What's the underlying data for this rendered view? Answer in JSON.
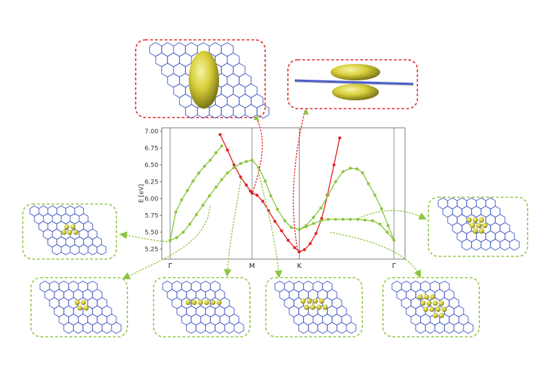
{
  "chart_data": {
    "type": "line",
    "ylabel": "E [eV]",
    "x_ticks": [
      "Γ",
      "M",
      "K",
      "Γ"
    ],
    "y_ticks": [
      "5.25",
      "5.50",
      "5.75",
      "6.00",
      "6.25",
      "6.50",
      "6.75",
      "7.00"
    ],
    "ylim": [
      5.1,
      7.05
    ],
    "x_special_points": [
      0,
      1,
      1.577,
      2.732
    ],
    "grid": false,
    "series": [
      {
        "color": "#e32121",
        "x": [
          0.61,
          0.7,
          0.78,
          0.86,
          0.93,
          0.98,
          1.0,
          1.06,
          1.13,
          1.2,
          1.28,
          1.36,
          1.44,
          1.52,
          1.577,
          1.64,
          1.71,
          1.78,
          1.85,
          1.92,
          2.0,
          2.07
        ],
        "y": [
          6.95,
          6.72,
          6.5,
          6.32,
          6.2,
          6.11,
          6.08,
          6.05,
          5.96,
          5.82,
          5.66,
          5.52,
          5.38,
          5.27,
          5.21,
          5.24,
          5.33,
          5.48,
          5.7,
          6.05,
          6.5,
          6.9
        ]
      },
      {
        "color": "#8cc63f",
        "x": [
          0,
          0.08,
          0.16,
          0.24,
          0.32,
          0.4,
          0.48,
          0.56,
          0.63,
          0.7,
          0.78,
          0.86,
          0.93,
          1.0,
          1.08,
          1.16,
          1.23,
          1.31,
          1.4,
          1.48,
          1.577,
          1.66,
          1.75,
          1.84,
          1.93,
          2.02,
          2.11,
          2.2,
          2.29,
          2.38,
          2.47,
          2.56,
          2.65,
          2.732
        ],
        "y": [
          5.38,
          5.42,
          5.5,
          5.62,
          5.76,
          5.9,
          6.04,
          6.17,
          6.28,
          6.38,
          6.46,
          6.52,
          6.55,
          6.57,
          6.46,
          6.26,
          6.04,
          5.84,
          5.67,
          5.57,
          5.54,
          5.58,
          5.63,
          5.67,
          5.69,
          5.69,
          5.69,
          5.69,
          5.69,
          5.68,
          5.67,
          5.62,
          5.5,
          5.38
        ]
      },
      {
        "color": "#8cc63f",
        "x": [
          0,
          0.07,
          0.14,
          0.21,
          0.28,
          0.35,
          0.42,
          0.49,
          0.56,
          0.63
        ],
        "y": [
          5.38,
          5.8,
          5.98,
          6.12,
          6.26,
          6.38,
          6.48,
          6.57,
          6.68,
          6.78
        ]
      },
      {
        "color": "#8cc63f",
        "x": [
          1.577,
          1.66,
          1.75,
          1.84,
          1.93,
          2.02,
          2.11,
          2.2,
          2.28,
          2.35,
          2.42,
          2.5,
          2.58,
          2.66,
          2.732
        ],
        "y": [
          5.54,
          5.6,
          5.72,
          5.86,
          6.05,
          6.25,
          6.4,
          6.45,
          6.44,
          6.38,
          6.22,
          6.05,
          5.85,
          5.6,
          5.38
        ]
      }
    ]
  },
  "insets": [
    {
      "name": "inset-top-left-ellipsoid",
      "style": "red",
      "kind": "ellipsoid"
    },
    {
      "name": "inset-top-right-side-view",
      "style": "red",
      "kind": "side"
    },
    {
      "name": "inset-left",
      "style": "green",
      "kind": "lattice-small"
    },
    {
      "name": "inset-right",
      "style": "green",
      "kind": "lattice-triangle"
    },
    {
      "name": "inset-bottom-1",
      "style": "green",
      "kind": "lattice-small"
    },
    {
      "name": "inset-bottom-2",
      "style": "green",
      "kind": "lattice-row"
    },
    {
      "name": "inset-bottom-3",
      "style": "green",
      "kind": "lattice-row2"
    },
    {
      "name": "inset-bottom-4",
      "style": "green",
      "kind": "lattice-big"
    }
  ],
  "colors": {
    "red_curve": "#e32121",
    "green_curve": "#8cc63f",
    "red_frame": "#e32121",
    "green_frame": "#8cc63f",
    "lattice_blue": "#4a5fc8",
    "isosurface": "#d4cc38"
  }
}
